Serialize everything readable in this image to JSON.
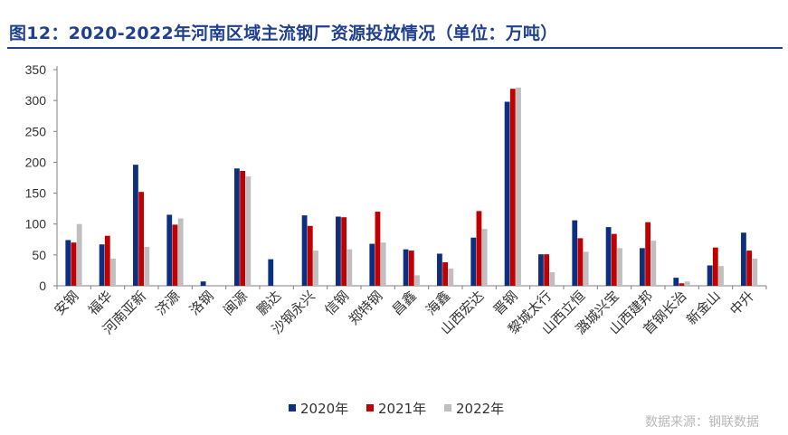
{
  "title": "图12：2020-2022年河南区域主流钢厂资源投放情况（单位：万吨）",
  "source": "数据来源：钢联数据",
  "chart_data": {
    "type": "bar",
    "title": "图12：2020-2022年河南区域主流钢厂资源投放情况（单位：万吨）",
    "xlabel": "",
    "ylabel": "",
    "ylim": [
      0,
      350
    ],
    "yticks": [
      0,
      50,
      100,
      150,
      200,
      250,
      300,
      350
    ],
    "grid": false,
    "legend_position": "bottom-center",
    "categories": [
      "安钢",
      "福华",
      "河南亚新",
      "济源",
      "洛钢",
      "闽源",
      "鹏达",
      "沙钢永兴",
      "信钢",
      "郑特钢",
      "昌鑫",
      "海鑫",
      "山西宏达",
      "晋钢",
      "黎城太行",
      "山西立恒",
      "潞城兴宝",
      "山西建邦",
      "首钢长治",
      "新金山",
      "中升"
    ],
    "series": [
      {
        "name": "2020年",
        "color": "#0d2f7f",
        "values": [
          74,
          67,
          196,
          115,
          7,
          190,
          43,
          114,
          112,
          68,
          59,
          52,
          78,
          298,
          51,
          106,
          95,
          61,
          13,
          33,
          86
        ]
      },
      {
        "name": "2021年",
        "color": "#c00000",
        "values": [
          70,
          81,
          152,
          99,
          0,
          186,
          0,
          97,
          111,
          120,
          57,
          38,
          121,
          319,
          51,
          77,
          84,
          103,
          4,
          62,
          57
        ]
      },
      {
        "name": "2022年",
        "color": "#bfbfbf",
        "values": [
          100,
          44,
          63,
          109,
          0,
          177,
          0,
          57,
          59,
          70,
          17,
          28,
          92,
          321,
          22,
          55,
          61,
          73,
          7,
          32,
          44
        ]
      }
    ]
  }
}
